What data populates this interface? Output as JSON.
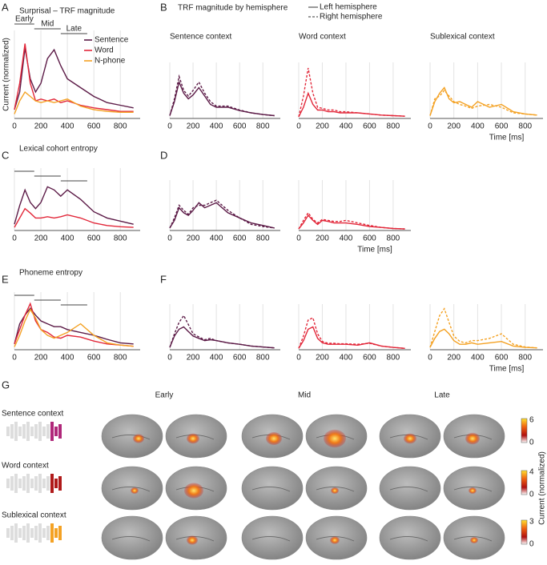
{
  "chart_data": [
    {
      "type": "line",
      "panel": "A",
      "title": "Surprisal – TRF magnitude",
      "y_label": "Current (normalized)",
      "legend": "top-right",
      "windows": [
        {
          "label": "Early",
          "start": 0,
          "end": 150
        },
        {
          "label": "Mid",
          "start": 150,
          "end": 350
        },
        {
          "label": "Late",
          "start": 350,
          "end": 550
        }
      ],
      "x": [
        0,
        40,
        80,
        120,
        160,
        200,
        250,
        300,
        350,
        400,
        500,
        600,
        700,
        800,
        900
      ],
      "xlim": [
        0,
        950
      ],
      "ylim": [
        0,
        1
      ],
      "xticks": [
        0,
        200,
        400,
        600,
        800
      ],
      "grid": true,
      "series": [
        {
          "name": "Sentence",
          "color": "#5c1b47",
          "values": [
            0.1,
            0.3,
            0.8,
            0.45,
            0.3,
            0.4,
            0.68,
            0.78,
            0.6,
            0.45,
            0.35,
            0.25,
            0.18,
            0.15,
            0.12
          ]
        },
        {
          "name": "Word",
          "color": "#e2283a",
          "values": [
            0.1,
            0.4,
            0.85,
            0.4,
            0.2,
            0.22,
            0.2,
            0.22,
            0.18,
            0.2,
            0.15,
            0.12,
            0.1,
            0.08,
            0.08
          ]
        },
        {
          "name": "N-phone",
          "color": "#f4a224",
          "values": [
            0.05,
            0.2,
            0.3,
            0.25,
            0.2,
            0.18,
            0.2,
            0.18,
            0.2,
            0.22,
            0.14,
            0.1,
            0.08,
            0.07,
            0.07
          ]
        }
      ]
    },
    {
      "type": "line",
      "panel": "B",
      "heading": "TRF magnitude by hemisphere",
      "title": "Sentence context",
      "legend": "outside-top",
      "x": [
        0,
        40,
        80,
        120,
        160,
        200,
        250,
        300,
        350,
        400,
        500,
        600,
        700,
        800,
        900
      ],
      "xlim": [
        0,
        950
      ],
      "ylim": [
        0,
        1
      ],
      "xticks": [
        0,
        200,
        400,
        600,
        800
      ],
      "grid": true,
      "series": [
        {
          "name": "Left hemisphere",
          "color": "#5c1b47",
          "values": [
            0.05,
            0.3,
            0.65,
            0.45,
            0.35,
            0.42,
            0.55,
            0.4,
            0.25,
            0.2,
            0.2,
            0.14,
            0.1,
            0.07,
            0.05
          ]
        },
        {
          "name": "Right hemisphere",
          "color": "#5c1b47",
          "dash": true,
          "values": [
            0.05,
            0.35,
            0.75,
            0.5,
            0.4,
            0.5,
            0.65,
            0.45,
            0.3,
            0.22,
            0.22,
            0.15,
            0.1,
            0.07,
            0.05
          ]
        }
      ]
    },
    {
      "type": "line",
      "title": "Word context",
      "x": [
        0,
        40,
        80,
        120,
        160,
        200,
        250,
        300,
        350,
        400,
        500,
        600,
        700,
        800,
        900
      ],
      "xlim": [
        0,
        950
      ],
      "ylim": [
        0,
        1
      ],
      "xticks": [
        0,
        200,
        400,
        600,
        800
      ],
      "grid": true,
      "series": [
        {
          "name": "Left hemisphere",
          "color": "#e2283a",
          "values": [
            0.03,
            0.2,
            0.45,
            0.25,
            0.15,
            0.15,
            0.12,
            0.12,
            0.1,
            0.1,
            0.1,
            0.08,
            0.06,
            0.05,
            0.04
          ]
        },
        {
          "name": "Right hemisphere",
          "color": "#e2283a",
          "dash": true,
          "values": [
            0.03,
            0.4,
            0.9,
            0.45,
            0.2,
            0.18,
            0.15,
            0.15,
            0.12,
            0.12,
            0.1,
            0.08,
            0.06,
            0.05,
            0.04
          ]
        }
      ]
    },
    {
      "type": "line",
      "title": "Sublexical context",
      "x_label": "Time [ms]",
      "x": [
        0,
        40,
        80,
        120,
        160,
        200,
        250,
        300,
        350,
        400,
        500,
        600,
        700,
        800,
        900
      ],
      "xlim": [
        0,
        950
      ],
      "ylim": [
        0,
        1
      ],
      "xticks": [
        0,
        200,
        400,
        600,
        800
      ],
      "grid": true,
      "series": [
        {
          "name": "Left hemisphere",
          "color": "#f4a224",
          "values": [
            0.05,
            0.3,
            0.45,
            0.55,
            0.35,
            0.28,
            0.3,
            0.25,
            0.2,
            0.3,
            0.2,
            0.25,
            0.12,
            0.08,
            0.06
          ]
        },
        {
          "name": "Right hemisphere",
          "color": "#f4a224",
          "dash": true,
          "values": [
            0.05,
            0.35,
            0.4,
            0.5,
            0.4,
            0.3,
            0.25,
            0.22,
            0.18,
            0.22,
            0.25,
            0.2,
            0.1,
            0.08,
            0.06
          ]
        }
      ]
    },
    {
      "type": "line",
      "panel": "C",
      "title": "Lexical cohort entropy",
      "windows": [
        {
          "start": 0,
          "end": 150
        },
        {
          "start": 150,
          "end": 350
        },
        {
          "start": 350,
          "end": 550
        }
      ],
      "x": [
        0,
        40,
        80,
        120,
        160,
        200,
        250,
        300,
        350,
        400,
        500,
        600,
        700,
        800,
        900
      ],
      "xlim": [
        0,
        950
      ],
      "ylim": [
        0,
        1
      ],
      "xticks": [
        0,
        200,
        400,
        600,
        800
      ],
      "grid": true,
      "series": [
        {
          "name": "Sentence",
          "color": "#5c1b47",
          "values": [
            0.1,
            0.4,
            0.65,
            0.45,
            0.35,
            0.45,
            0.7,
            0.65,
            0.55,
            0.65,
            0.5,
            0.3,
            0.2,
            0.15,
            0.1
          ]
        },
        {
          "name": "Word",
          "color": "#e2283a",
          "values": [
            0.05,
            0.2,
            0.35,
            0.28,
            0.2,
            0.2,
            0.22,
            0.2,
            0.22,
            0.25,
            0.2,
            0.12,
            0.08,
            0.06,
            0.05
          ]
        }
      ]
    },
    {
      "type": "line",
      "panel": "D",
      "x": [
        0,
        40,
        80,
        120,
        160,
        200,
        250,
        300,
        350,
        400,
        500,
        600,
        700,
        800,
        900
      ],
      "xlim": [
        0,
        950
      ],
      "ylim": [
        0,
        1
      ],
      "xticks": [
        0,
        200,
        400,
        600,
        800
      ],
      "grid": true,
      "series": [
        {
          "name": "Left hemisphere",
          "color": "#5c1b47",
          "values": [
            0.05,
            0.2,
            0.45,
            0.35,
            0.3,
            0.4,
            0.55,
            0.45,
            0.5,
            0.55,
            0.35,
            0.25,
            0.15,
            0.1,
            0.05
          ]
        },
        {
          "name": "Right hemisphere",
          "color": "#5c1b47",
          "dash": true,
          "values": [
            0.05,
            0.25,
            0.5,
            0.4,
            0.32,
            0.45,
            0.5,
            0.5,
            0.55,
            0.6,
            0.4,
            0.25,
            0.12,
            0.08,
            0.05
          ]
        }
      ]
    },
    {
      "type": "line",
      "x_label": "Time [ms]",
      "x": [
        0,
        40,
        80,
        120,
        160,
        200,
        250,
        300,
        350,
        400,
        500,
        600,
        700,
        800,
        900
      ],
      "xlim": [
        0,
        950
      ],
      "ylim": [
        0,
        1
      ],
      "xticks": [
        0,
        200,
        400,
        600,
        800
      ],
      "grid": true,
      "series": [
        {
          "name": "Left hemisphere",
          "color": "#e2283a",
          "values": [
            0.03,
            0.15,
            0.3,
            0.2,
            0.12,
            0.2,
            0.18,
            0.15,
            0.15,
            0.15,
            0.12,
            0.08,
            0.06,
            0.04,
            0.03
          ]
        },
        {
          "name": "Right hemisphere",
          "color": "#e2283a",
          "dash": true,
          "values": [
            0.03,
            0.2,
            0.35,
            0.22,
            0.15,
            0.22,
            0.2,
            0.18,
            0.18,
            0.2,
            0.15,
            0.1,
            0.06,
            0.04,
            0.03
          ]
        }
      ]
    },
    {
      "type": "line",
      "panel": "E",
      "title": "Phoneme entropy",
      "windows": [
        {
          "start": 0,
          "end": 150
        },
        {
          "start": 150,
          "end": 350
        },
        {
          "start": 350,
          "end": 550
        }
      ],
      "x": [
        0,
        40,
        80,
        120,
        160,
        200,
        250,
        300,
        350,
        400,
        500,
        600,
        700,
        800,
        900
      ],
      "xlim": [
        0,
        950
      ],
      "ylim": [
        0,
        1
      ],
      "xticks": [
        0,
        200,
        400,
        600,
        800
      ],
      "grid": true,
      "series": [
        {
          "name": "Sentence",
          "color": "#5c1b47",
          "values": [
            0.1,
            0.45,
            0.6,
            0.72,
            0.6,
            0.5,
            0.45,
            0.4,
            0.4,
            0.35,
            0.3,
            0.25,
            0.18,
            0.12,
            0.1
          ]
        },
        {
          "name": "Word",
          "color": "#e2283a",
          "values": [
            0.1,
            0.35,
            0.6,
            0.8,
            0.5,
            0.35,
            0.3,
            0.22,
            0.2,
            0.25,
            0.22,
            0.15,
            0.1,
            0.08,
            0.06
          ]
        },
        {
          "name": "N-phone",
          "color": "#f4a224",
          "values": [
            0.05,
            0.25,
            0.5,
            0.7,
            0.55,
            0.35,
            0.25,
            0.2,
            0.25,
            0.3,
            0.45,
            0.25,
            0.12,
            0.08,
            0.06
          ]
        }
      ]
    },
    {
      "type": "line",
      "panel": "F",
      "x": [
        0,
        40,
        80,
        120,
        160,
        200,
        250,
        300,
        350,
        400,
        500,
        600,
        700,
        800,
        900
      ],
      "xlim": [
        0,
        950
      ],
      "ylim": [
        0,
        1
      ],
      "xticks": [
        0,
        200,
        400,
        600,
        800
      ],
      "grid": true,
      "series": [
        {
          "name": "Left hemisphere",
          "color": "#5c1b47",
          "values": [
            0.05,
            0.3,
            0.45,
            0.5,
            0.4,
            0.3,
            0.25,
            0.2,
            0.22,
            0.2,
            0.15,
            0.12,
            0.08,
            0.06,
            0.04
          ]
        },
        {
          "name": "Right hemisphere",
          "color": "#5c1b47",
          "dash": true,
          "values": [
            0.05,
            0.35,
            0.6,
            0.75,
            0.55,
            0.35,
            0.28,
            0.22,
            0.25,
            0.2,
            0.15,
            0.12,
            0.08,
            0.06,
            0.04
          ]
        }
      ]
    },
    {
      "type": "line",
      "x": [
        0,
        40,
        80,
        120,
        160,
        200,
        250,
        300,
        350,
        400,
        500,
        600,
        700,
        800,
        900
      ],
      "xlim": [
        0,
        950
      ],
      "ylim": [
        0,
        1
      ],
      "xticks": [
        0,
        200,
        400,
        600,
        800
      ],
      "grid": true,
      "series": [
        {
          "name": "Left hemisphere",
          "color": "#e2283a",
          "values": [
            0.03,
            0.2,
            0.45,
            0.5,
            0.25,
            0.15,
            0.12,
            0.12,
            0.12,
            0.12,
            0.1,
            0.15,
            0.08,
            0.05,
            0.03
          ]
        },
        {
          "name": "Right hemisphere",
          "color": "#e2283a",
          "dash": true,
          "values": [
            0.03,
            0.3,
            0.65,
            0.7,
            0.35,
            0.18,
            0.14,
            0.14,
            0.13,
            0.13,
            0.12,
            0.14,
            0.08,
            0.05,
            0.03
          ]
        }
      ]
    },
    {
      "type": "line",
      "x_label": "Time [ms]",
      "x": [
        0,
        40,
        80,
        120,
        160,
        200,
        250,
        300,
        350,
        400,
        500,
        600,
        700,
        800,
        900
      ],
      "xlim": [
        0,
        950
      ],
      "ylim": [
        0,
        1
      ],
      "xticks": [
        0,
        200,
        400,
        600,
        800
      ],
      "grid": true,
      "series": [
        {
          "name": "Left hemisphere",
          "color": "#f4a224",
          "values": [
            0.05,
            0.25,
            0.4,
            0.45,
            0.35,
            0.2,
            0.12,
            0.12,
            0.15,
            0.12,
            0.15,
            0.18,
            0.08,
            0.05,
            0.04
          ]
        },
        {
          "name": "Right hemisphere",
          "color": "#f4a224",
          "dash": true,
          "values": [
            0.05,
            0.4,
            0.75,
            0.9,
            0.6,
            0.3,
            0.18,
            0.15,
            0.2,
            0.2,
            0.25,
            0.35,
            0.12,
            0.06,
            0.04
          ]
        }
      ]
    }
  ],
  "brain_maps": {
    "panel": "G",
    "columns": [
      "Early",
      "Mid",
      "Late"
    ],
    "rows": [
      {
        "label": "Sentence context",
        "cbar_ticks": [
          0,
          6
        ]
      },
      {
        "label": "Word context",
        "cbar_ticks": [
          0,
          4
        ]
      },
      {
        "label": "Sublexical context",
        "cbar_ticks": [
          0,
          3
        ]
      }
    ],
    "cbar_label": "Current (normalized)"
  }
}
